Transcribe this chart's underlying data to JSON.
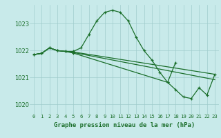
{
  "background_color": "#c8eaea",
  "line_color": "#1a6e2a",
  "title": "Graphe pression niveau de la mer (hPa)",
  "ylim": [
    1019.65,
    1023.7
  ],
  "yticks": [
    1020,
    1021,
    1022,
    1023
  ],
  "xlim": [
    -0.5,
    23.5
  ],
  "xticks": [
    0,
    1,
    2,
    3,
    4,
    5,
    6,
    7,
    8,
    9,
    10,
    11,
    12,
    13,
    14,
    15,
    16,
    17,
    18,
    19,
    20,
    21,
    22,
    23
  ],
  "series1_x": [
    0,
    1,
    2,
    3,
    4,
    5,
    6,
    7,
    8,
    9,
    10,
    11,
    12,
    13,
    14,
    15,
    16,
    17,
    18
  ],
  "series1_y": [
    1021.85,
    1021.9,
    1022.1,
    1022.0,
    1021.97,
    1021.97,
    1022.1,
    1022.6,
    1023.1,
    1023.42,
    1023.5,
    1023.42,
    1023.1,
    1022.5,
    1022.0,
    1021.65,
    1021.2,
    1020.82,
    1021.55
  ],
  "series2_x": [
    0,
    1,
    2,
    3,
    4,
    5,
    23
  ],
  "series2_y": [
    1021.85,
    1021.9,
    1022.1,
    1022.0,
    1021.97,
    1021.95,
    1021.12
  ],
  "series3_x": [
    0,
    1,
    2,
    3,
    4,
    5,
    23
  ],
  "series3_y": [
    1021.85,
    1021.9,
    1022.1,
    1022.0,
    1021.97,
    1021.93,
    1020.92
  ],
  "series4_x": [
    0,
    1,
    2,
    3,
    4,
    5,
    17,
    18,
    19,
    20,
    21,
    22,
    23
  ],
  "series4_y": [
    1021.85,
    1021.9,
    1022.1,
    1022.0,
    1021.97,
    1021.91,
    1020.82,
    1020.55,
    1020.28,
    1020.22,
    1020.62,
    1020.35,
    1021.12
  ]
}
